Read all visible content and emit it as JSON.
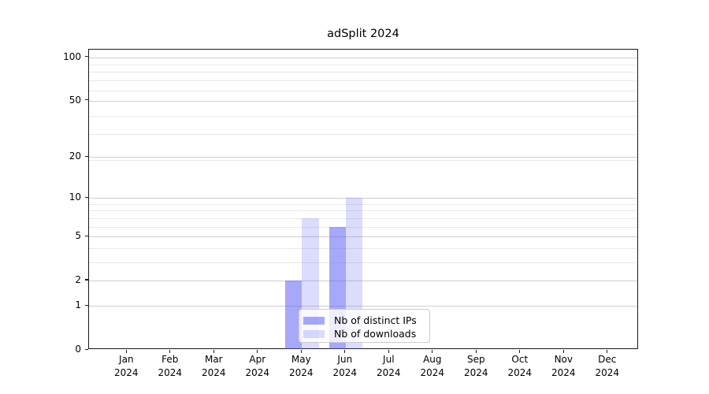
{
  "chart_data": {
    "type": "bar",
    "title": "adSplit 2024",
    "categories": [
      "Jan",
      "Feb",
      "Mar",
      "Apr",
      "May",
      "Jun",
      "Jul",
      "Aug",
      "Sep",
      "Oct",
      "Nov",
      "Dec"
    ],
    "year_label": "2024",
    "series": [
      {
        "name": "Nb of distinct IPs",
        "values": [
          0,
          0,
          0,
          0,
          2,
          6,
          0,
          0,
          0,
          0,
          0,
          0
        ],
        "color": "rgba(82,82,242,0.5)"
      },
      {
        "name": "Nb of downloads",
        "values": [
          0,
          0,
          0,
          0,
          7,
          10,
          0,
          0,
          0,
          0,
          0,
          0
        ],
        "color": "rgba(82,82,242,0.2)"
      }
    ],
    "yscale": "log10(1+x)",
    "yticks": [
      0,
      1,
      2,
      5,
      10,
      20,
      50,
      100
    ],
    "minor_gridlines_log1p": [
      4,
      5,
      7,
      8,
      9,
      10,
      20,
      30,
      40,
      60,
      70,
      80,
      90
    ],
    "ylim": [
      0,
      113
    ],
    "grid": true,
    "legend_position": "lower center",
    "colors": {
      "bar_distinct_ips": "rgba(82,82,242,0.5)",
      "bar_downloads": "rgba(82,82,242,0.2)",
      "major_grid": "#cfcfcf",
      "minor_grid": "#e9e9e9",
      "spine": "#1a1a1a",
      "text": "#000000",
      "legend_border": "#cccccc",
      "legend_bg": "rgba(255,255,255,0.8)"
    }
  }
}
